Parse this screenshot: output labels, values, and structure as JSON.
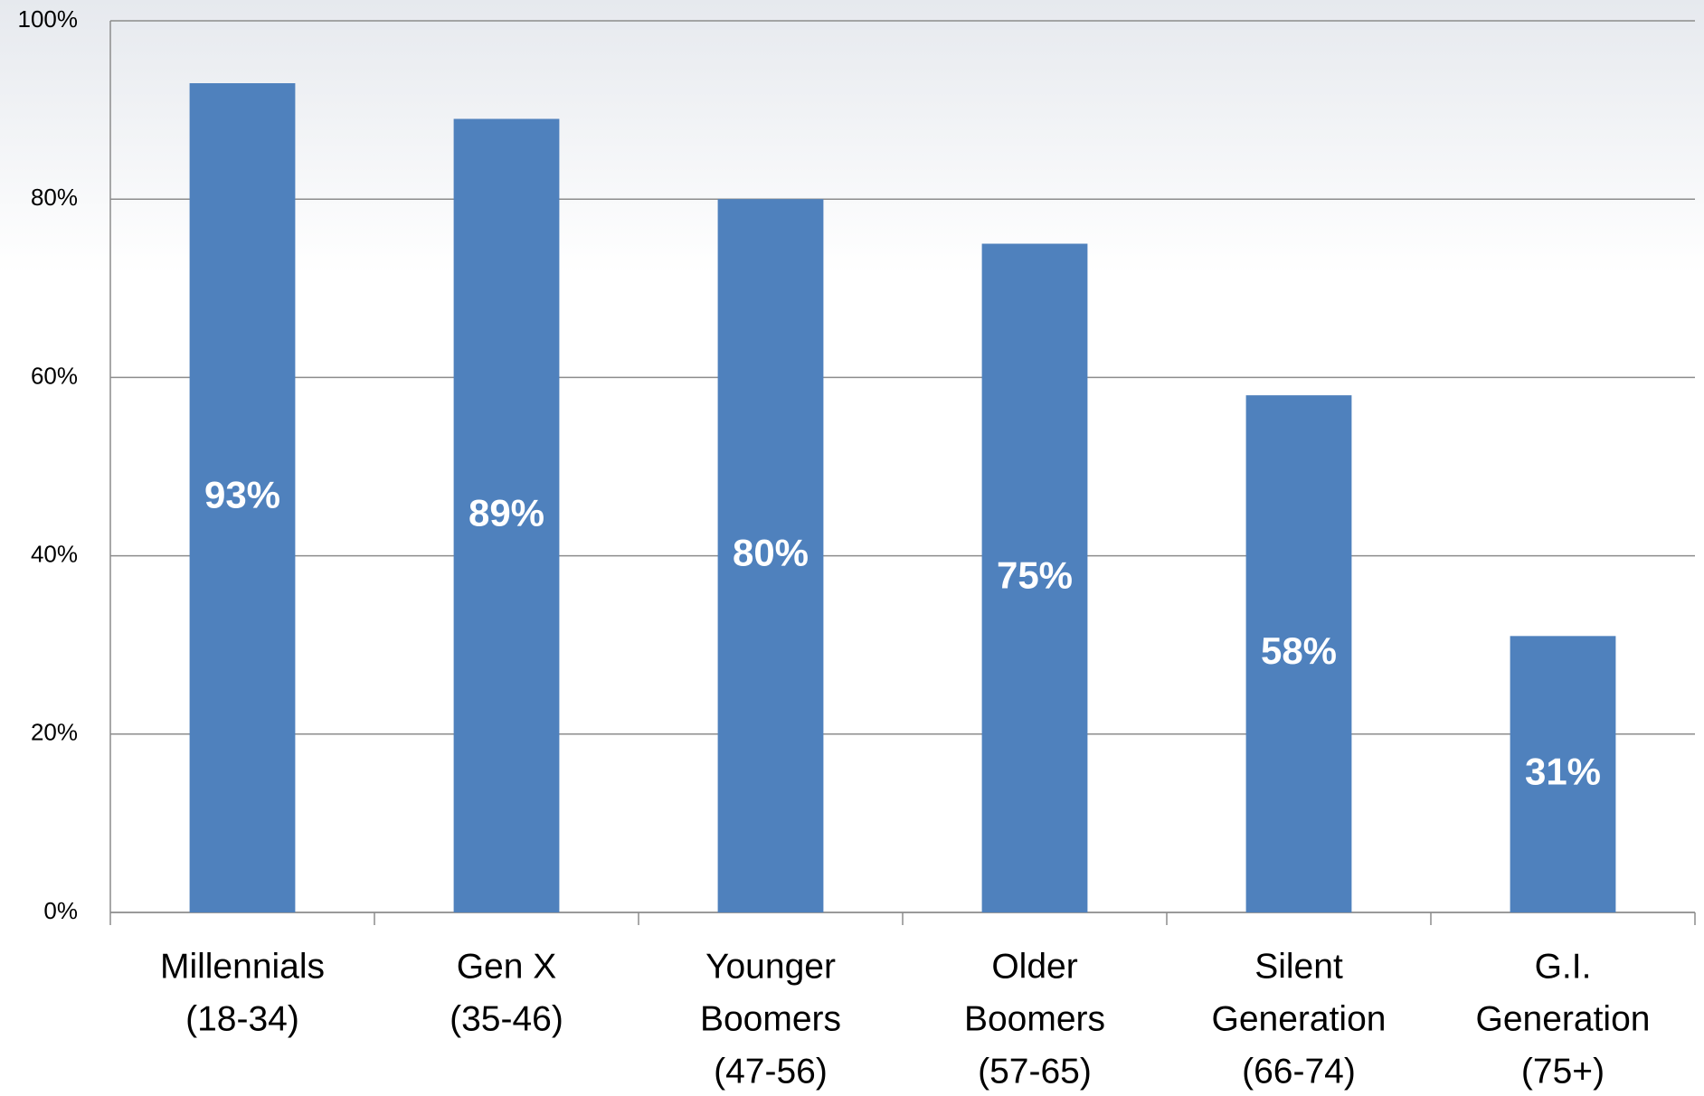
{
  "chart_data": {
    "type": "bar",
    "categories": [
      [
        "Millennials",
        "(18-34)"
      ],
      [
        "Gen X",
        "(35-46)"
      ],
      [
        "Younger",
        "Boomers",
        "(47-56)"
      ],
      [
        "Older",
        "Boomers",
        "(57-65)"
      ],
      [
        "Silent",
        "Generation",
        "(66-74)"
      ],
      [
        "G.I.",
        "Generation",
        "(75+)"
      ]
    ],
    "values": [
      93,
      89,
      80,
      75,
      58,
      31
    ],
    "value_labels": [
      "93%",
      "89%",
      "80%",
      "75%",
      "58%",
      "31%"
    ],
    "color": "#4f81bd",
    "ylim": [
      0,
      100
    ],
    "yticks": [
      {
        "value": 0,
        "label": "0%"
      },
      {
        "value": 20,
        "label": "20%"
      },
      {
        "value": 40,
        "label": "40%"
      },
      {
        "value": 60,
        "label": "60%"
      },
      {
        "value": 80,
        "label": "80%"
      },
      {
        "value": 100,
        "label": "100%"
      }
    ],
    "grid": true
  }
}
